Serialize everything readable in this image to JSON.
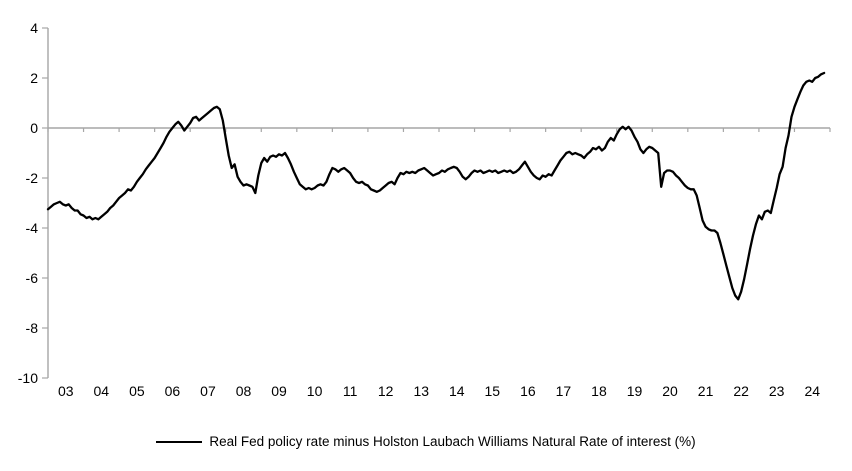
{
  "chart_data": {
    "type": "line",
    "title": "",
    "xlabel": "",
    "ylabel": "",
    "ylim": [
      -10,
      4
    ],
    "y_ticks": [
      4,
      2,
      0,
      -2,
      -4,
      -6,
      -8,
      -10
    ],
    "y_tick_labels": [
      "4",
      "2",
      "0",
      "-2",
      "-4",
      "-6",
      "-8",
      "-10"
    ],
    "x_tick_labels": [
      "03",
      "04",
      "05",
      "06",
      "07",
      "08",
      "09",
      "10",
      "11",
      "12",
      "13",
      "14",
      "15",
      "16",
      "17",
      "18",
      "19",
      "20",
      "21",
      "22",
      "23",
      "24"
    ],
    "x_years_span": 22,
    "grid": "zero-line-only",
    "legend_position": "bottom-center",
    "series": [
      {
        "name": "Real Fed policy rate minus Holston Laubach Williams Natural Rate of interest (%)",
        "frequency": "monthly",
        "start": "2003-01",
        "end": "2024-11",
        "values": [
          -3.25,
          -3.15,
          -3.05,
          -3.0,
          -2.95,
          -3.05,
          -3.1,
          -3.05,
          -3.2,
          -3.3,
          -3.3,
          -3.45,
          -3.5,
          -3.6,
          -3.55,
          -3.65,
          -3.6,
          -3.65,
          -3.55,
          -3.45,
          -3.35,
          -3.2,
          -3.1,
          -2.95,
          -2.8,
          -2.7,
          -2.6,
          -2.45,
          -2.5,
          -2.35,
          -2.15,
          -2.0,
          -1.85,
          -1.65,
          -1.5,
          -1.35,
          -1.2,
          -1.0,
          -0.8,
          -0.6,
          -0.35,
          -0.15,
          0.0,
          0.15,
          0.25,
          0.1,
          -0.1,
          0.05,
          0.2,
          0.4,
          0.45,
          0.3,
          0.4,
          0.5,
          0.6,
          0.7,
          0.8,
          0.85,
          0.75,
          0.3,
          -0.4,
          -1.1,
          -1.6,
          -1.45,
          -1.95,
          -2.15,
          -2.3,
          -2.25,
          -2.3,
          -2.35,
          -2.6,
          -1.9,
          -1.4,
          -1.2,
          -1.35,
          -1.15,
          -1.1,
          -1.15,
          -1.05,
          -1.1,
          -1.0,
          -1.2,
          -1.45,
          -1.75,
          -2.0,
          -2.25,
          -2.35,
          -2.45,
          -2.4,
          -2.45,
          -2.4,
          -2.3,
          -2.25,
          -2.3,
          -2.15,
          -1.85,
          -1.6,
          -1.65,
          -1.75,
          -1.65,
          -1.6,
          -1.7,
          -1.8,
          -2.0,
          -2.15,
          -2.2,
          -2.15,
          -2.25,
          -2.3,
          -2.45,
          -2.5,
          -2.55,
          -2.5,
          -2.4,
          -2.3,
          -2.2,
          -2.15,
          -2.25,
          -2.0,
          -1.8,
          -1.85,
          -1.75,
          -1.8,
          -1.75,
          -1.8,
          -1.7,
          -1.65,
          -1.6,
          -1.7,
          -1.8,
          -1.9,
          -1.85,
          -1.8,
          -1.7,
          -1.75,
          -1.65,
          -1.6,
          -1.55,
          -1.6,
          -1.75,
          -1.95,
          -2.05,
          -1.95,
          -1.8,
          -1.7,
          -1.75,
          -1.7,
          -1.8,
          -1.75,
          -1.7,
          -1.75,
          -1.7,
          -1.8,
          -1.75,
          -1.7,
          -1.75,
          -1.7,
          -1.8,
          -1.75,
          -1.65,
          -1.5,
          -1.35,
          -1.55,
          -1.75,
          -1.9,
          -2.0,
          -2.05,
          -1.9,
          -1.95,
          -1.85,
          -1.9,
          -1.7,
          -1.5,
          -1.3,
          -1.15,
          -1.0,
          -0.95,
          -1.05,
          -1.0,
          -1.05,
          -1.1,
          -1.2,
          -1.05,
          -0.95,
          -0.8,
          -0.85,
          -0.75,
          -0.9,
          -0.8,
          -0.55,
          -0.4,
          -0.5,
          -0.25,
          -0.05,
          0.05,
          -0.05,
          0.05,
          -0.1,
          -0.35,
          -0.55,
          -0.85,
          -1.0,
          -0.85,
          -0.75,
          -0.8,
          -0.9,
          -1.0,
          -2.35,
          -1.8,
          -1.7,
          -1.7,
          -1.75,
          -1.9,
          -2.0,
          -2.15,
          -2.3,
          -2.4,
          -2.45,
          -2.45,
          -2.7,
          -3.2,
          -3.7,
          -3.95,
          -4.05,
          -4.1,
          -4.1,
          -4.2,
          -4.6,
          -5.05,
          -5.5,
          -5.95,
          -6.4,
          -6.7,
          -6.85,
          -6.55,
          -6.05,
          -5.45,
          -4.85,
          -4.3,
          -3.85,
          -3.5,
          -3.65,
          -3.35,
          -3.3,
          -3.4,
          -2.9,
          -2.4,
          -1.85,
          -1.55,
          -0.8,
          -0.3,
          0.45,
          0.85,
          1.15,
          1.45,
          1.7,
          1.85,
          1.9,
          1.85,
          2.0,
          2.05,
          2.15,
          2.2
        ]
      }
    ]
  },
  "legend": {
    "label": "Real Fed policy rate minus Holston Laubach Williams Natural Rate of interest (%)"
  },
  "colors": {
    "line": "#000000",
    "axis": "#a6a6a6",
    "zero_line": "#a6a6a6",
    "text": "#000000",
    "background": "#ffffff"
  }
}
